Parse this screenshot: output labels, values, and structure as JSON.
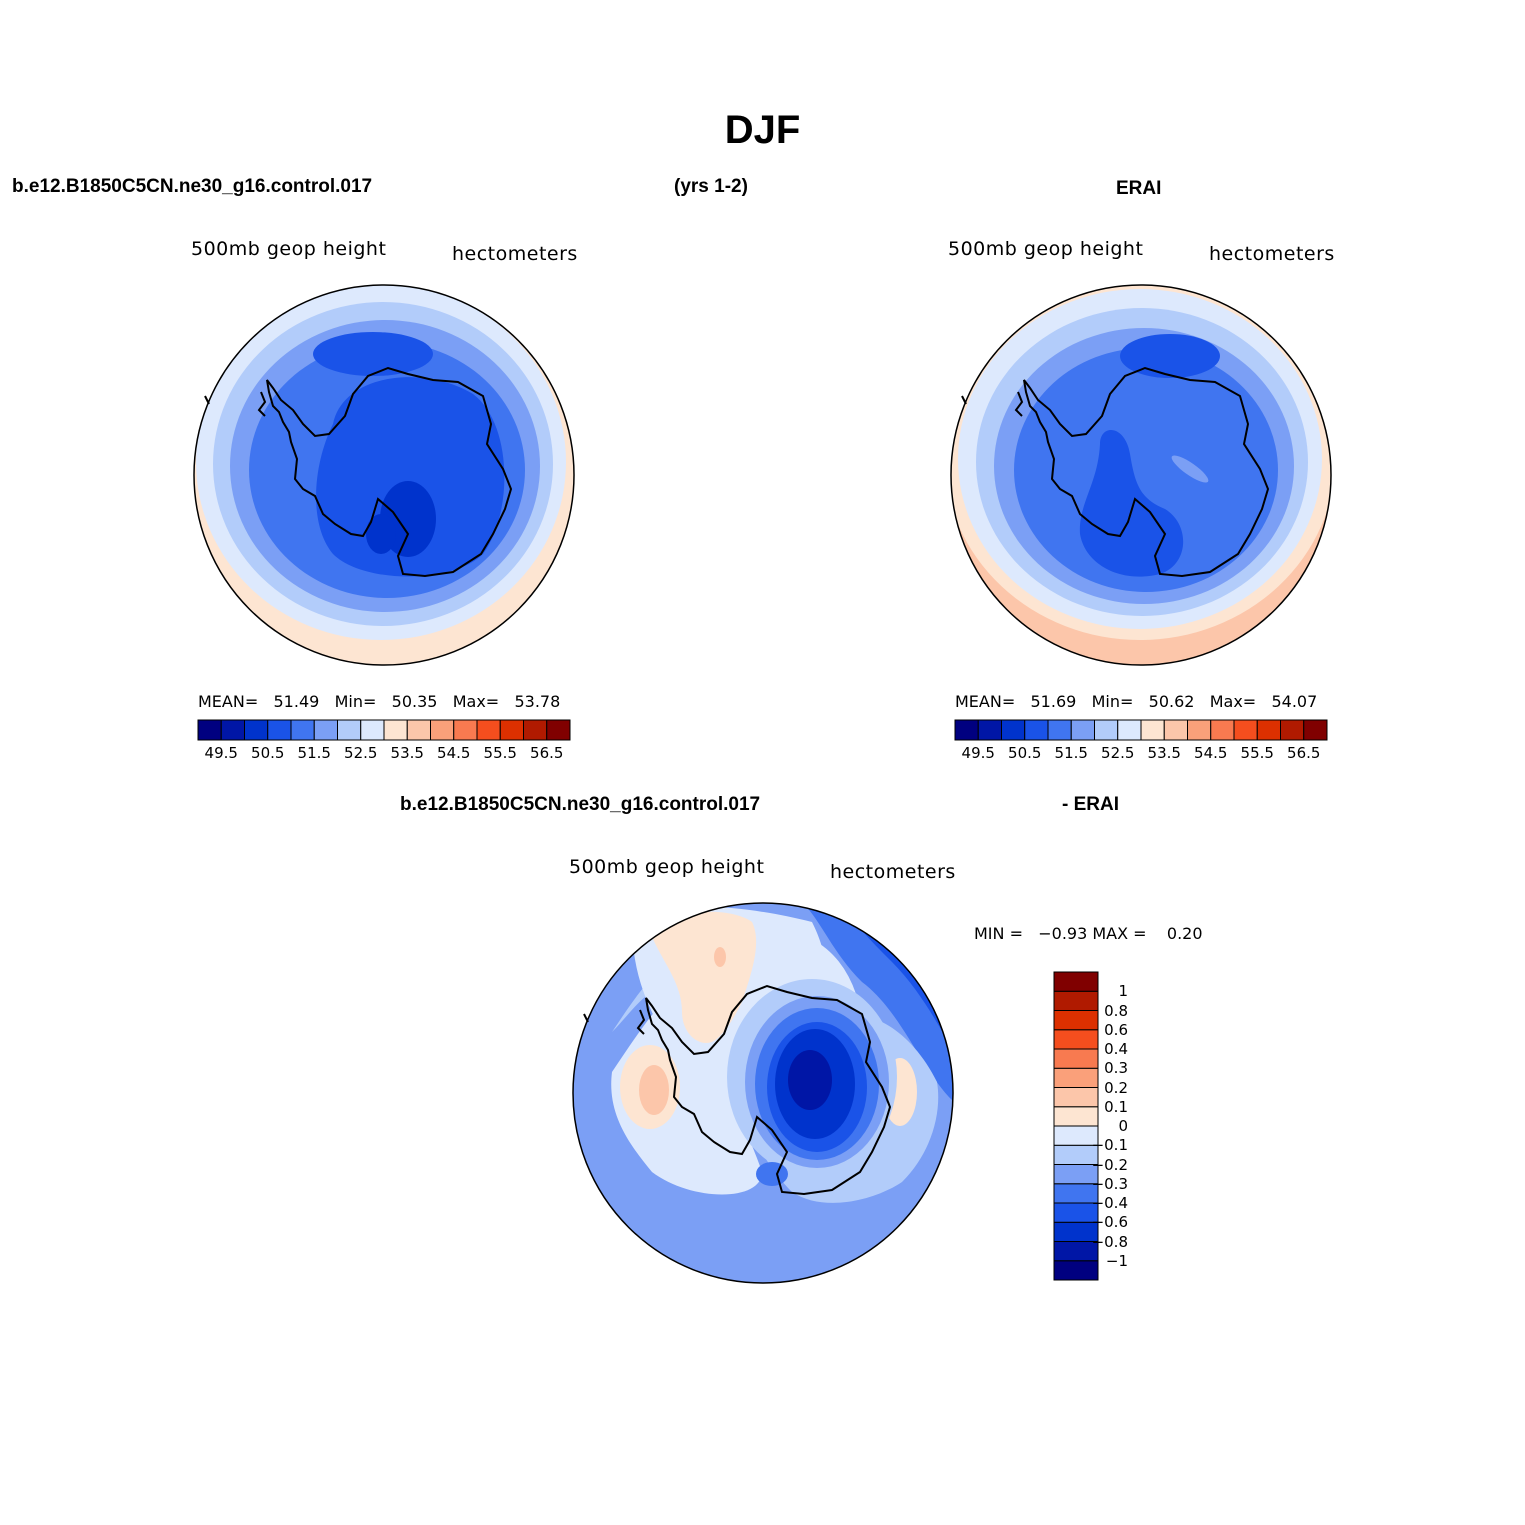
{
  "figure": {
    "title": "DJF",
    "case_name": "b.e12.B1850C5CN.ne30_g16.control.017",
    "years": "(yrs 1-2)",
    "reference": "ERAI",
    "diff_case_name": "b.e12.B1850C5CN.ne30_g16.control.017",
    "diff_reference": "- ERAI"
  },
  "panels": {
    "model": {
      "variable": "500mb  geop  height",
      "units": "hectometers",
      "mean_label": "MEAN=",
      "mean": "51.49",
      "min_label": "Min=",
      "min": "50.35",
      "max_label": "Max=",
      "max": "53.78"
    },
    "obs": {
      "variable": "500mb  geop  height",
      "units": "hectometers",
      "mean_label": "MEAN=",
      "mean": "51.69",
      "min_label": "Min=",
      "min": "50.62",
      "max_label": "Max=",
      "max": "54.07"
    },
    "diff": {
      "variable": "500mb  geop  height",
      "units": "hectometers",
      "minmax_text": "MIN =   −0.93 MAX =    0.20"
    }
  },
  "colorbars": {
    "abs": {
      "colors": [
        "#000080",
        "#0016a6",
        "#0033cc",
        "#1a53e8",
        "#4075f0",
        "#7b9ff5",
        "#b2ccfa",
        "#dde9fd",
        "#fde5d2",
        "#fcc6aa",
        "#faa07a",
        "#f87a50",
        "#f54e1e",
        "#dd3000",
        "#b01a00",
        "#800000"
      ],
      "ticks": [
        "49.5",
        "50.5",
        "51.5",
        "52.5",
        "53.5",
        "54.5",
        "55.5",
        "56.5"
      ]
    },
    "diff": {
      "colors": [
        "#000080",
        "#0016a6",
        "#0033cc",
        "#1a53e8",
        "#4075f0",
        "#7b9ff5",
        "#b2ccfa",
        "#dde9fd",
        "#fde5d2",
        "#fcc6aa",
        "#faa07a",
        "#f87a50",
        "#f54e1e",
        "#dd3000",
        "#b01a00",
        "#800000"
      ],
      "ticks": [
        "−1",
        "−0.8",
        "−0.6",
        "−0.4",
        "−0.3",
        "−0.2",
        "−0.1",
        "0",
        "0.1",
        "0.2",
        "0.3",
        "0.4",
        "0.6",
        "0.8",
        "1"
      ]
    }
  }
}
